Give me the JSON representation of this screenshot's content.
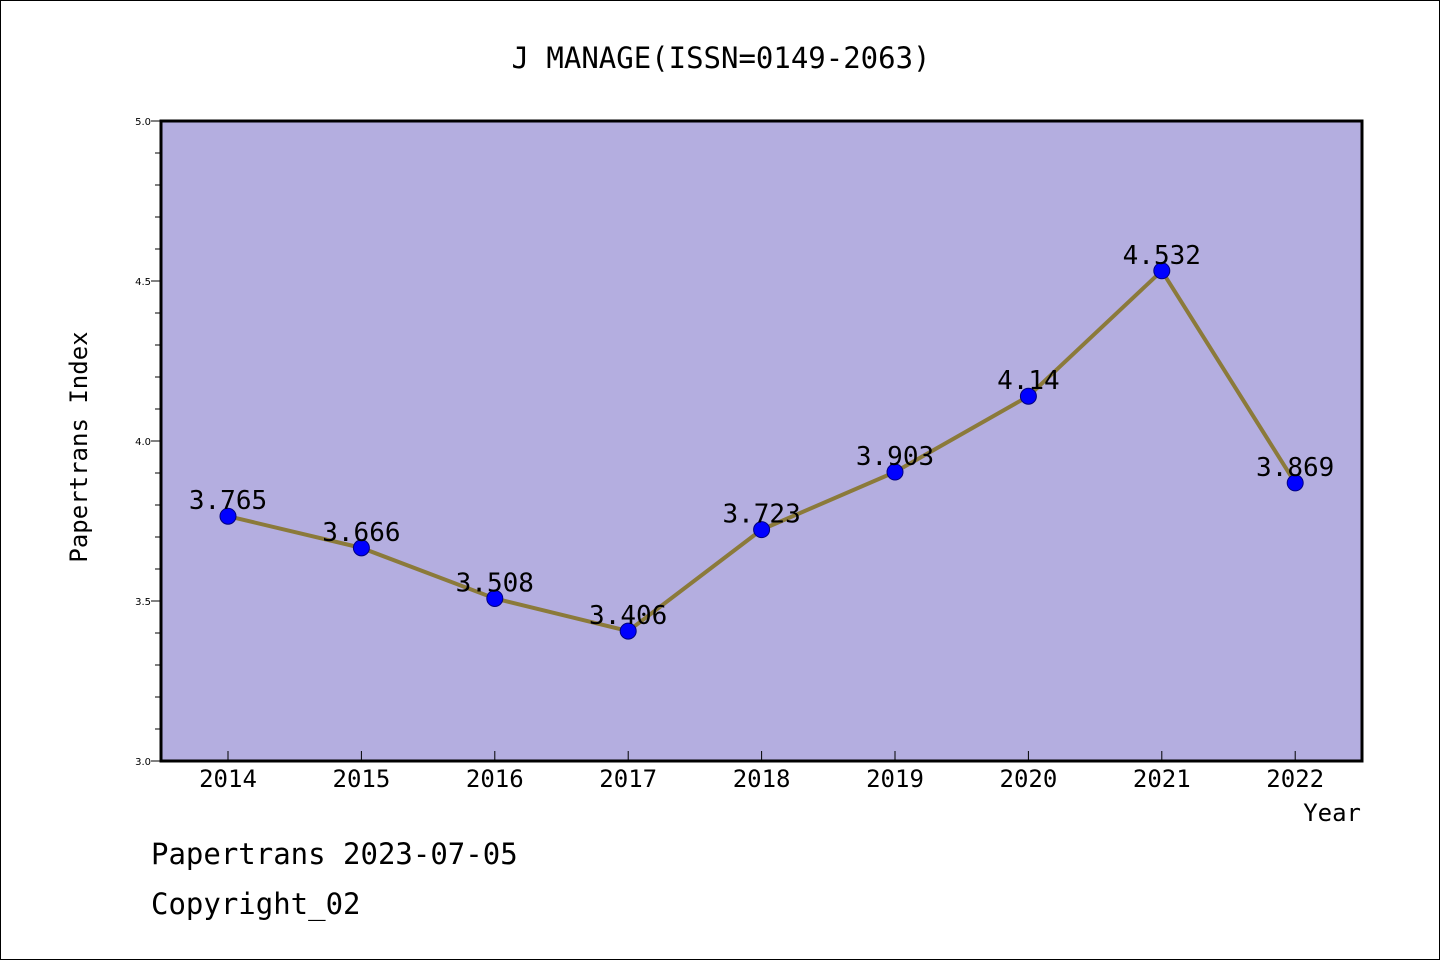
{
  "colors": {
    "plot_background": "#b4aee0",
    "line": "#8b7a3a",
    "marker": "#0000ff",
    "axis": "#000000",
    "page_background": "#ffffff"
  },
  "chart_data": {
    "type": "line",
    "title": "J MANAGE(ISSN=0149-2063)",
    "xlabel": "Year",
    "ylabel": "Papertrans Index",
    "categories": [
      "2014",
      "2015",
      "2016",
      "2017",
      "2018",
      "2019",
      "2020",
      "2021",
      "2022"
    ],
    "series": [
      {
        "values": [
          3.765,
          3.666,
          3.508,
          3.406,
          3.723,
          3.903,
          4.14,
          4.532,
          3.869
        ],
        "data_labels": [
          "3.765",
          "3.666",
          "3.508",
          "3.406",
          "3.723",
          "3.903",
          "4.14",
          "4.532",
          "3.869"
        ]
      }
    ],
    "ylim": [
      3.0,
      5.0
    ],
    "yticks": [
      "3.0",
      "3.5",
      "4.0",
      "4.5",
      "5.0"
    ],
    "grid": false,
    "legend": "none"
  },
  "footer": {
    "line1": "Papertrans 2023-07-05",
    "line2": "Copyright_02"
  }
}
